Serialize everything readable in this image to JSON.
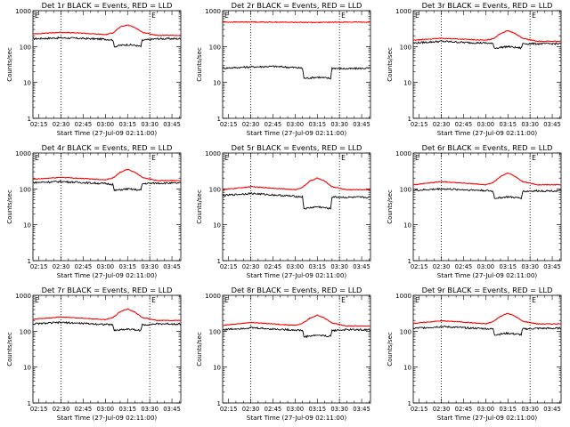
{
  "chart_data": [
    {
      "type": "line",
      "title": "Det 1r BLACK = Events, RED = LLD",
      "xlabel": "Start Time (27-Jul-09 02:11:00)",
      "ylabel": "Counts/sec",
      "yscale": "log",
      "ylim": [
        1,
        1000
      ],
      "xlim": [
        "02:11",
        "03:51"
      ],
      "xtick_labels": [
        "02:15",
        "02:30",
        "02:45",
        "03:00",
        "03:15",
        "03:30",
        "03:45"
      ],
      "ytick_labels": [
        "1",
        "10",
        "100",
        "1000"
      ],
      "vlines": [
        "02:30",
        "03:30"
      ],
      "marker_label": "E",
      "series": [
        {
          "name": "Events",
          "color": "#000000",
          "x": [
            "02:11",
            "02:30",
            "02:45",
            "03:00",
            "03:05",
            "03:06",
            "03:10",
            "03:15",
            "03:20",
            "03:24",
            "03:25",
            "03:35",
            "03:51"
          ],
          "y": [
            165,
            175,
            168,
            160,
            155,
            100,
            108,
            113,
            108,
            100,
            150,
            165,
            165
          ]
        },
        {
          "name": "LLD",
          "color": "#ff0000",
          "x": [
            "02:11",
            "02:30",
            "02:45",
            "03:00",
            "03:05",
            "03:10",
            "03:15",
            "03:20",
            "03:25",
            "03:35",
            "03:51"
          ],
          "y": [
            225,
            250,
            235,
            215,
            240,
            350,
            400,
            340,
            250,
            205,
            205
          ]
        }
      ]
    },
    {
      "type": "line",
      "title": "Det 2r BLACK = Events, RED = LLD",
      "xlabel": "Start Time (27-Jul-09 02:11:00)",
      "ylabel": "Counts/sec",
      "yscale": "log",
      "ylim": [
        1,
        1000
      ],
      "xlim": [
        "02:11",
        "03:51"
      ],
      "xtick_labels": [
        "02:15",
        "02:30",
        "02:45",
        "03:00",
        "03:15",
        "03:30",
        "03:45"
      ],
      "ytick_labels": [
        "1",
        "10",
        "100",
        "1000"
      ],
      "vlines": [
        "02:30",
        "03:30"
      ],
      "marker_label": "E",
      "series": [
        {
          "name": "Events",
          "color": "#000000",
          "x": [
            "02:11",
            "02:30",
            "02:45",
            "03:00",
            "03:05",
            "03:06",
            "03:15",
            "03:24",
            "03:25",
            "03:35",
            "03:51"
          ],
          "y": [
            25,
            27,
            28,
            26,
            25,
            13,
            14,
            13,
            25,
            24,
            25
          ]
        },
        {
          "name": "LLD",
          "color": "#ff0000",
          "x": [
            "02:11",
            "02:30",
            "02:45",
            "03:00",
            "03:15",
            "03:30",
            "03:51"
          ],
          "y": [
            480,
            485,
            480,
            475,
            470,
            480,
            480
          ]
        }
      ]
    },
    {
      "type": "line",
      "title": "Det 3r BLACK = Events, RED = LLD",
      "xlabel": "Start Time (27-Jul-09 02:11:00)",
      "ylabel": "Counts/sec",
      "yscale": "log",
      "ylim": [
        1,
        1000
      ],
      "xlim": [
        "02:11",
        "03:51"
      ],
      "xtick_labels": [
        "02:15",
        "02:30",
        "02:45",
        "03:00",
        "03:15",
        "03:30",
        "03:45"
      ],
      "ytick_labels": [
        "1",
        "10",
        "100",
        "1000"
      ],
      "vlines": [
        "02:30",
        "03:30"
      ],
      "marker_label": "E",
      "series": [
        {
          "name": "Events",
          "color": "#000000",
          "x": [
            "02:11",
            "02:30",
            "02:45",
            "03:00",
            "03:05",
            "03:06",
            "03:15",
            "03:24",
            "03:25",
            "03:35",
            "03:51"
          ],
          "y": [
            125,
            140,
            130,
            125,
            120,
            90,
            100,
            90,
            120,
            120,
            120
          ]
        },
        {
          "name": "LLD",
          "color": "#ff0000",
          "x": [
            "02:11",
            "02:30",
            "02:45",
            "03:00",
            "03:05",
            "03:10",
            "03:15",
            "03:20",
            "03:25",
            "03:35",
            "03:51"
          ],
          "y": [
            150,
            170,
            160,
            150,
            165,
            230,
            280,
            230,
            170,
            140,
            140
          ]
        }
      ]
    },
    {
      "type": "line",
      "title": "Det 4r BLACK = Events, RED = LLD",
      "xlabel": "Start Time (27-Jul-09 02:11:00)",
      "ylabel": "Counts/sec",
      "yscale": "log",
      "ylim": [
        1,
        1000
      ],
      "xlim": [
        "02:11",
        "03:51"
      ],
      "xtick_labels": [
        "02:15",
        "02:30",
        "02:45",
        "03:00",
        "03:15",
        "03:30",
        "03:45"
      ],
      "ytick_labels": [
        "1",
        "10",
        "100",
        "1000"
      ],
      "vlines": [
        "02:30",
        "03:30"
      ],
      "marker_label": "E",
      "series": [
        {
          "name": "Events",
          "color": "#000000",
          "x": [
            "02:11",
            "02:30",
            "02:45",
            "03:00",
            "03:05",
            "03:06",
            "03:15",
            "03:24",
            "03:25",
            "03:35",
            "03:51"
          ],
          "y": [
            150,
            160,
            150,
            140,
            135,
            90,
            100,
            92,
            140,
            145,
            145
          ]
        },
        {
          "name": "LLD",
          "color": "#ff0000",
          "x": [
            "02:11",
            "02:30",
            "02:45",
            "03:00",
            "03:05",
            "03:10",
            "03:15",
            "03:20",
            "03:25",
            "03:35",
            "03:51"
          ],
          "y": [
            185,
            210,
            195,
            180,
            200,
            290,
            350,
            290,
            210,
            170,
            170
          ]
        }
      ]
    },
    {
      "type": "line",
      "title": "Det 5r BLACK = Events, RED = LLD",
      "xlabel": "Start Time (27-Jul-09 02:11:00)",
      "ylabel": "Counts/sec",
      "yscale": "log",
      "ylim": [
        1,
        1000
      ],
      "xlim": [
        "02:11",
        "03:51"
      ],
      "xtick_labels": [
        "02:15",
        "02:30",
        "02:45",
        "03:00",
        "03:15",
        "03:30",
        "03:45"
      ],
      "ytick_labels": [
        "1",
        "10",
        "100",
        "1000"
      ],
      "vlines": [
        "02:30",
        "03:30"
      ],
      "marker_label": "E",
      "series": [
        {
          "name": "Events",
          "color": "#000000",
          "x": [
            "02:11",
            "02:30",
            "02:45",
            "03:00",
            "03:05",
            "03:06",
            "03:15",
            "03:24",
            "03:25",
            "03:35",
            "03:51"
          ],
          "y": [
            65,
            75,
            68,
            62,
            60,
            28,
            32,
            28,
            60,
            58,
            58
          ]
        },
        {
          "name": "LLD",
          "color": "#ff0000",
          "x": [
            "02:11",
            "02:30",
            "02:45",
            "03:00",
            "03:05",
            "03:10",
            "03:15",
            "03:20",
            "03:25",
            "03:35",
            "03:51"
          ],
          "y": [
            95,
            115,
            105,
            95,
            110,
            165,
            200,
            165,
            115,
            95,
            95
          ]
        }
      ]
    },
    {
      "type": "line",
      "title": "Det 6r BLACK = Events, RED = LLD",
      "xlabel": "Start Time (27-Jul-09 02:11:00)",
      "ylabel": "Counts/sec",
      "yscale": "log",
      "ylim": [
        1,
        1000
      ],
      "xlim": [
        "02:11",
        "03:51"
      ],
      "xtick_labels": [
        "02:15",
        "02:30",
        "02:45",
        "03:00",
        "03:15",
        "03:30",
        "03:45"
      ],
      "ytick_labels": [
        "1",
        "10",
        "100",
        "1000"
      ],
      "vlines": [
        "02:30",
        "03:30"
      ],
      "marker_label": "E",
      "series": [
        {
          "name": "Events",
          "color": "#000000",
          "x": [
            "02:11",
            "02:30",
            "02:45",
            "03:00",
            "03:05",
            "03:06",
            "03:15",
            "03:24",
            "03:25",
            "03:35",
            "03:51"
          ],
          "y": [
            90,
            100,
            95,
            90,
            85,
            55,
            60,
            55,
            85,
            88,
            88
          ]
        },
        {
          "name": "LLD",
          "color": "#ff0000",
          "x": [
            "02:11",
            "02:30",
            "02:45",
            "03:00",
            "03:05",
            "03:10",
            "03:15",
            "03:20",
            "03:25",
            "03:35",
            "03:51"
          ],
          "y": [
            130,
            160,
            145,
            130,
            150,
            220,
            280,
            220,
            160,
            130,
            130
          ]
        }
      ]
    },
    {
      "type": "line",
      "title": "Det 7r BLACK = Events, RED = LLD",
      "xlabel": "Start Time (27-Jul-09 02:11:00)",
      "ylabel": "Counts/sec",
      "yscale": "log",
      "ylim": [
        1,
        1000
      ],
      "xlim": [
        "02:11",
        "03:51"
      ],
      "xtick_labels": [
        "02:15",
        "02:30",
        "02:45",
        "03:00",
        "03:15",
        "03:30",
        "03:45"
      ],
      "ytick_labels": [
        "1",
        "10",
        "100",
        "1000"
      ],
      "vlines": [
        "02:30",
        "03:30"
      ],
      "marker_label": "E",
      "series": [
        {
          "name": "Events",
          "color": "#000000",
          "x": [
            "02:11",
            "02:30",
            "02:45",
            "03:00",
            "03:05",
            "03:06",
            "03:15",
            "03:24",
            "03:25",
            "03:35",
            "03:51"
          ],
          "y": [
            160,
            175,
            165,
            155,
            150,
            105,
            115,
            105,
            150,
            160,
            160
          ]
        },
        {
          "name": "LLD",
          "color": "#ff0000",
          "x": [
            "02:11",
            "02:30",
            "02:45",
            "03:00",
            "03:05",
            "03:10",
            "03:15",
            "03:20",
            "03:25",
            "03:35",
            "03:51"
          ],
          "y": [
            215,
            250,
            230,
            210,
            240,
            350,
            420,
            340,
            240,
            200,
            200
          ]
        }
      ]
    },
    {
      "type": "line",
      "title": "Det 8r BLACK = Events, RED = LLD",
      "xlabel": "Start Time (27-Jul-09 02:11:00)",
      "ylabel": "Counts/sec",
      "yscale": "log",
      "ylim": [
        1,
        1000
      ],
      "xlim": [
        "02:11",
        "03:51"
      ],
      "xtick_labels": [
        "02:15",
        "02:30",
        "02:45",
        "03:00",
        "03:15",
        "03:30",
        "03:45"
      ],
      "ytick_labels": [
        "1",
        "10",
        "100",
        "1000"
      ],
      "vlines": [
        "02:30",
        "03:30"
      ],
      "marker_label": "E",
      "series": [
        {
          "name": "Events",
          "color": "#000000",
          "x": [
            "02:11",
            "02:30",
            "02:45",
            "03:00",
            "03:05",
            "03:06",
            "03:15",
            "03:24",
            "03:25",
            "03:35",
            "03:51"
          ],
          "y": [
            110,
            125,
            115,
            108,
            105,
            70,
            78,
            72,
            105,
            110,
            110
          ]
        },
        {
          "name": "LLD",
          "color": "#ff0000",
          "x": [
            "02:11",
            "02:30",
            "02:45",
            "03:00",
            "03:05",
            "03:10",
            "03:15",
            "03:20",
            "03:25",
            "03:35",
            "03:51"
          ],
          "y": [
            145,
            175,
            160,
            145,
            165,
            230,
            280,
            230,
            170,
            140,
            140
          ]
        }
      ]
    },
    {
      "type": "line",
      "title": "Det 9r BLACK = Events, RED = LLD",
      "xlabel": "Start Time (27-Jul-09 02:11:00)",
      "ylabel": "Counts/sec",
      "yscale": "log",
      "ylim": [
        1,
        1000
      ],
      "xlim": [
        "02:11",
        "03:51"
      ],
      "xtick_labels": [
        "02:15",
        "02:30",
        "02:45",
        "03:00",
        "03:15",
        "03:30",
        "03:45"
      ],
      "ytick_labels": [
        "1",
        "10",
        "100",
        "1000"
      ],
      "vlines": [
        "02:30",
        "03:30"
      ],
      "marker_label": "E",
      "series": [
        {
          "name": "Events",
          "color": "#000000",
          "x": [
            "02:11",
            "02:30",
            "02:45",
            "03:00",
            "03:05",
            "03:06",
            "03:15",
            "03:24",
            "03:25",
            "03:35",
            "03:51"
          ],
          "y": [
            120,
            135,
            125,
            118,
            115,
            80,
            88,
            80,
            115,
            120,
            120
          ]
        },
        {
          "name": "LLD",
          "color": "#ff0000",
          "x": [
            "02:11",
            "02:30",
            "02:45",
            "03:00",
            "03:05",
            "03:10",
            "03:15",
            "03:20",
            "03:25",
            "03:35",
            "03:51"
          ],
          "y": [
            165,
            195,
            180,
            160,
            185,
            260,
            320,
            260,
            190,
            160,
            160
          ]
        }
      ]
    }
  ]
}
